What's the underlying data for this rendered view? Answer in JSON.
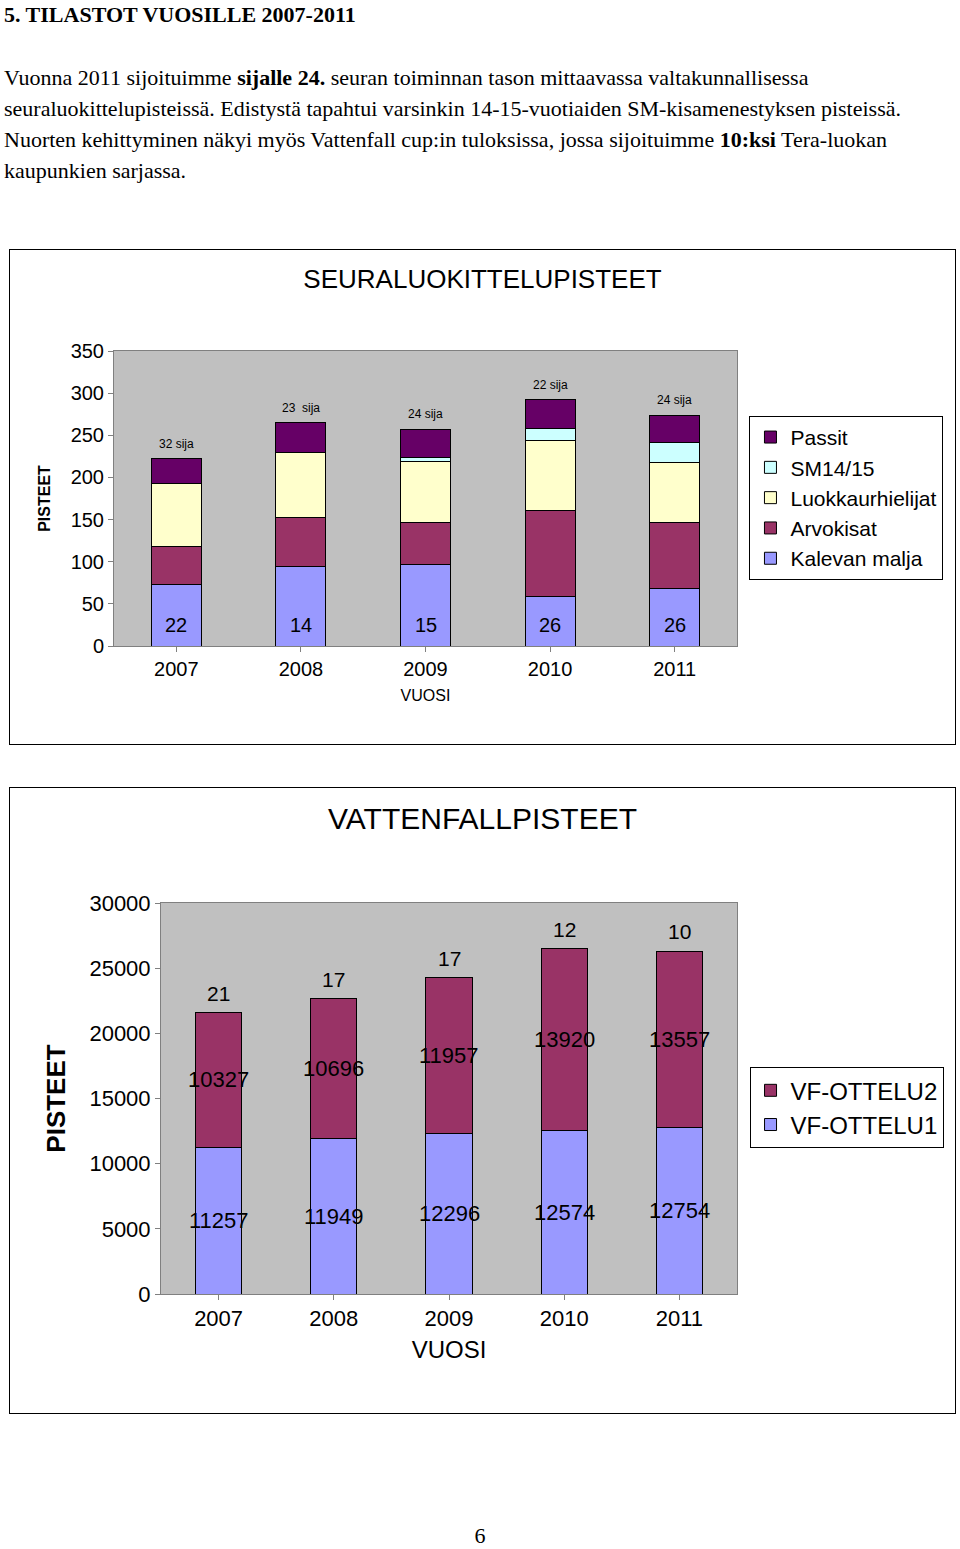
{
  "document": {
    "heading": "5. TILASTOT VUOSILLE 2007-2011",
    "paragraph": [
      {
        "text": "Vuonna 2011 sijoituimme ",
        "bold": false
      },
      {
        "text": "sijalle 24.",
        "bold": true
      },
      {
        "text": " seuran toiminnan tason mittaavassa valtakunnallisessa seuraluokittelupisteissä. Edistystä tapahtui varsinkin 14-15-vuotiaiden SM-kisamenestyksen pisteissä. Nuorten kehittyminen näkyi myös Vattenfall cup:in tuloksissa, jossa sijoituimme ",
        "bold": false
      },
      {
        "text": "10:ksi",
        "bold": true
      },
      {
        "text": " Tera-luokan kaupunkien sarjassa.",
        "bold": false
      }
    ],
    "page_number": "6"
  },
  "chart_data": [
    {
      "type": "bar",
      "stacked": true,
      "title": "SEURALUOKITTELUPISTEET",
      "xlabel": "VUOSI",
      "ylabel": "PISTEET",
      "categories": [
        "2007",
        "2008",
        "2009",
        "2010",
        "2011"
      ],
      "series": [
        {
          "name": "Kalevan malja",
          "color": "#9999ff",
          "values": [
            73,
            94,
            97,
            59,
            68
          ]
        },
        {
          "name": "Arvokisat",
          "color": "#993366",
          "values": [
            45,
            59,
            50,
            102,
            79
          ]
        },
        {
          "name": "Luokkaurhielijat",
          "color": "#ffffcc",
          "values": [
            75,
            76,
            72,
            83,
            71
          ]
        },
        {
          "name": "SM14/15",
          "color": "#ccffff",
          "values": [
            0,
            0,
            5,
            14,
            23
          ]
        },
        {
          "name": "Passit",
          "color": "#660066",
          "values": [
            29,
            36,
            33,
            34,
            33
          ]
        }
      ],
      "rank_labels": [
        "32 sija",
        "23  sija",
        "24 sija",
        "22 sija",
        "24 sija"
      ],
      "inner_labels": [
        "22",
        "14",
        "15",
        "26",
        "26"
      ],
      "ylim": [
        0,
        350
      ],
      "yticks": [
        0,
        50,
        100,
        150,
        200,
        250,
        300,
        350
      ],
      "grid": false,
      "legend": "right"
    },
    {
      "type": "bar",
      "stacked": true,
      "title": "VATTENFALLPISTEET",
      "xlabel": "VUOSI",
      "ylabel": "PISTEET",
      "categories": [
        "2007",
        "2008",
        "2009",
        "2010",
        "2011"
      ],
      "series": [
        {
          "name": "VF-OTTELU1",
          "color": "#9999ff",
          "values": [
            11257,
            11949,
            12296,
            12574,
            12754
          ]
        },
        {
          "name": "VF-OTTELU2",
          "color": "#993366",
          "values": [
            10327,
            10696,
            11957,
            13920,
            13557
          ]
        }
      ],
      "rank_labels": [
        "21",
        "17",
        "17",
        "12",
        "10"
      ],
      "ylim": [
        0,
        30000
      ],
      "yticks": [
        0,
        5000,
        10000,
        15000,
        20000,
        25000,
        30000
      ],
      "grid": false,
      "data_labels": true,
      "legend": "right"
    }
  ]
}
